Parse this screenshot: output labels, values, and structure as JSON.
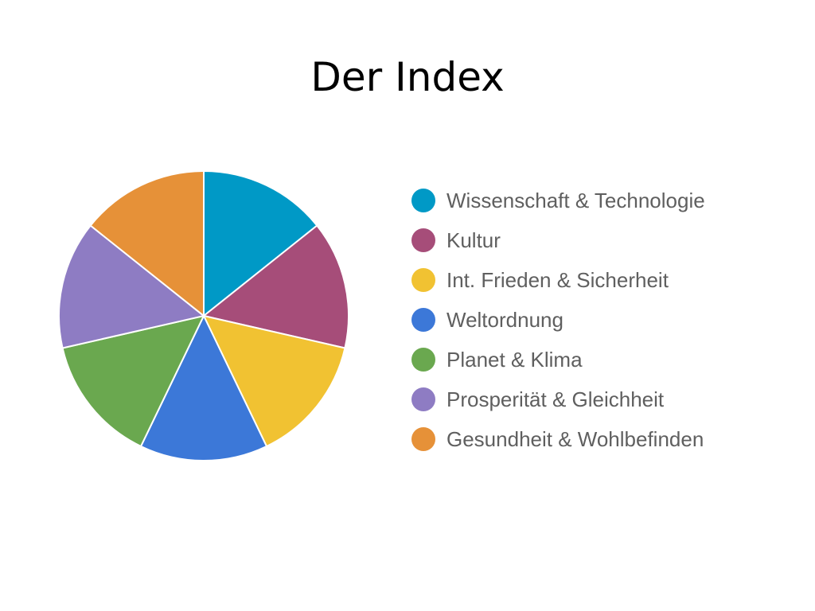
{
  "page": {
    "title": "Der Index"
  },
  "chart_data": {
    "type": "pie",
    "title": "",
    "categories": [
      "Wissenschaft & Technologie",
      "Kultur",
      "Int. Frieden & Sicherheit",
      "Weltordnung",
      "Planet & Klima",
      "Prosperität & Gleichheit",
      "Gesundheit & Wohlbefinden"
    ],
    "values": [
      1,
      1,
      1,
      1,
      1,
      1,
      1
    ],
    "colors": [
      "#0099c6",
      "#a64d79",
      "#f1c232",
      "#3c78d8",
      "#6aa84f",
      "#8e7cc3",
      "#e69138"
    ],
    "legend_position": "right"
  }
}
